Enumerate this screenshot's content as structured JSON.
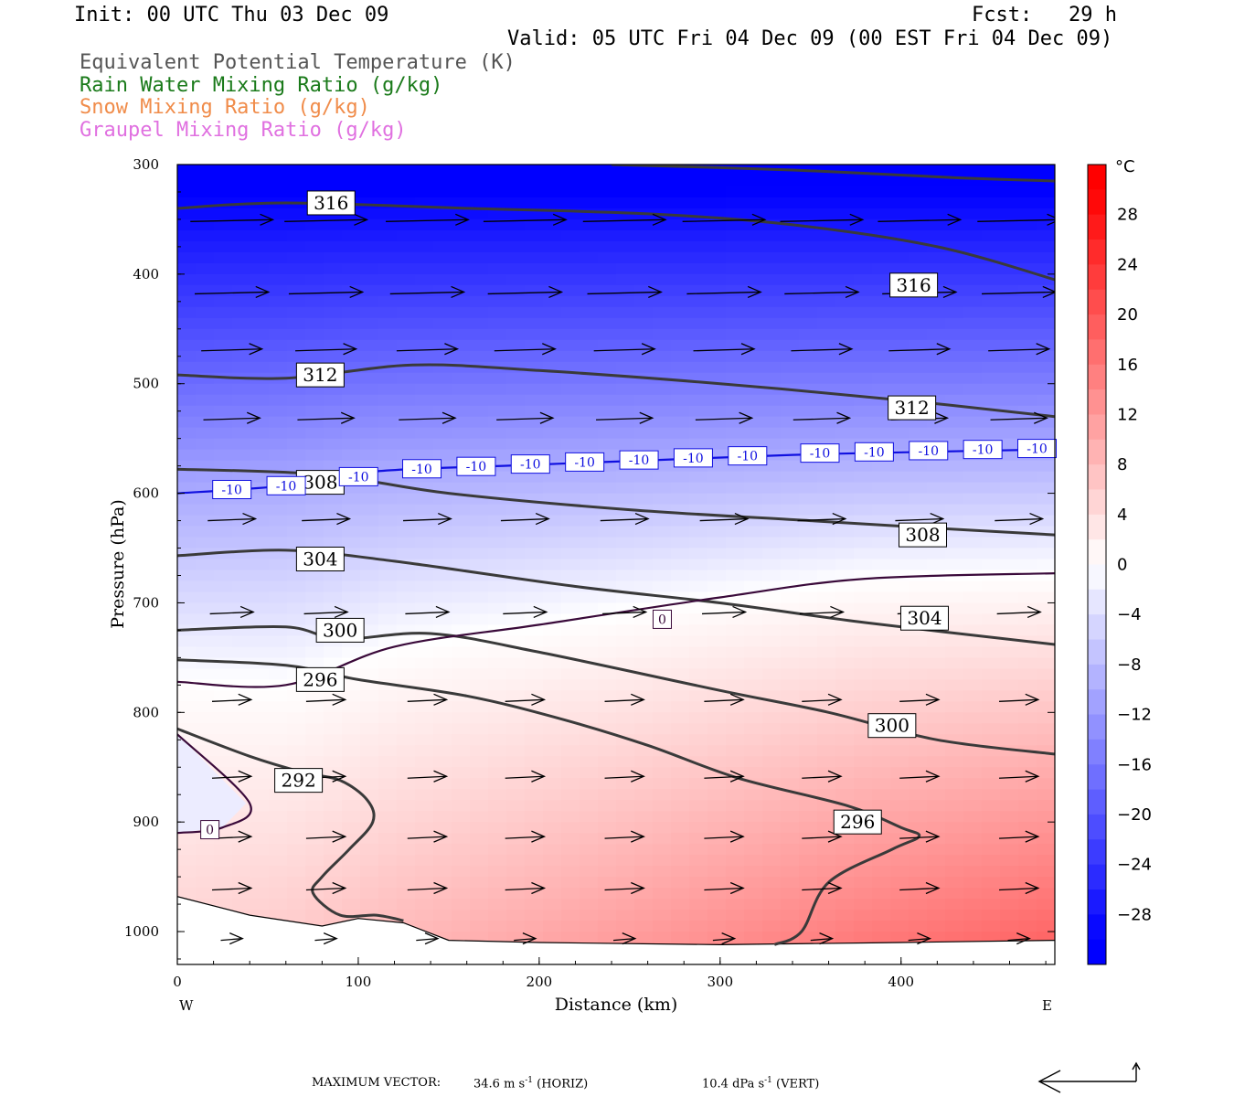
{
  "header": {
    "init": "Init: 00 UTC Thu 03 Dec 09",
    "fcst": "Fcst:   29 h",
    "valid": "Valid: 05 UTC Fri 04 Dec 09 (00 EST Fri 04 Dec 09)",
    "legend": [
      {
        "text": "Equivalent Potential Temperature (K)",
        "color": "#555555"
      },
      {
        "text": "Rain Water Mixing Ratio (g/kg)",
        "color": "#1a7a1a"
      },
      {
        "text": "Snow Mixing Ratio (g/kg)",
        "color": "#f08c4a"
      },
      {
        "text": "Graupel Mixing Ratio (g/kg)",
        "color": "#e070e0"
      }
    ]
  },
  "footer": {
    "max_vector_label": "MAXIMUM VECTOR:",
    "horiz": "34.6 m s",
    "horiz_exp": "-1",
    "horiz_unit": "(HORIZ)",
    "vert": "10.4 dPa s",
    "vert_exp": "-1",
    "vert_unit": "(VERT)"
  },
  "chart_data": {
    "type": "cross-section contour",
    "xlabel": "Distance (km)",
    "ylabel": "Pressure (hPa)",
    "xlim": [
      0,
      485
    ],
    "ylim": [
      1030,
      300
    ],
    "x_ticks": [
      0,
      100,
      200,
      300,
      400
    ],
    "y_ticks": [
      300,
      400,
      500,
      600,
      700,
      800,
      900,
      1000
    ],
    "x_end_labels": {
      "left": "W",
      "right": "E"
    },
    "colorbar": {
      "unit": "°C",
      "ticks": [
        28,
        24,
        20,
        16,
        12,
        8,
        4,
        0,
        -4,
        -8,
        -12,
        -16,
        -20,
        -24,
        -28
      ],
      "range": [
        -32,
        32
      ],
      "cold_color": "#0000ff",
      "warm_color": "#ff0000"
    },
    "theta_e_contours": [
      {
        "label": "316",
        "points": [
          [
            0,
            340
          ],
          [
            60,
            335
          ],
          [
            160,
            340
          ],
          [
            260,
            345
          ],
          [
            340,
            355
          ],
          [
            420,
            375
          ],
          [
            485,
            405
          ]
        ]
      },
      {
        "label": "316",
        "points": [
          [
            240,
            300
          ],
          [
            340,
            305
          ],
          [
            430,
            312
          ],
          [
            485,
            315
          ]
        ]
      },
      {
        "label": "312",
        "points": [
          [
            0,
            492
          ],
          [
            60,
            495
          ],
          [
            130,
            483
          ],
          [
            200,
            488
          ],
          [
            300,
            500
          ],
          [
            400,
            515
          ],
          [
            485,
            530
          ]
        ]
      },
      {
        "label": "308",
        "points": [
          [
            0,
            578
          ],
          [
            80,
            583
          ],
          [
            150,
            600
          ],
          [
            250,
            615
          ],
          [
            350,
            625
          ],
          [
            420,
            632
          ],
          [
            485,
            638
          ]
        ]
      },
      {
        "label": "304",
        "points": [
          [
            0,
            657
          ],
          [
            60,
            652
          ],
          [
            120,
            662
          ],
          [
            220,
            685
          ],
          [
            300,
            700
          ],
          [
            380,
            718
          ],
          [
            485,
            738
          ]
        ]
      },
      {
        "label": "300",
        "points": [
          [
            0,
            725
          ],
          [
            60,
            722
          ],
          [
            90,
            733
          ],
          [
            140,
            728
          ],
          [
            200,
            745
          ],
          [
            300,
            780
          ],
          [
            360,
            800
          ],
          [
            420,
            825
          ],
          [
            485,
            838
          ]
        ]
      },
      {
        "label": "296",
        "points": [
          [
            0,
            752
          ],
          [
            60,
            757
          ],
          [
            100,
            770
          ],
          [
            160,
            785
          ],
          [
            210,
            805
          ],
          [
            260,
            830
          ],
          [
            310,
            860
          ],
          [
            370,
            885
          ],
          [
            400,
            905
          ],
          [
            410,
            913
          ],
          [
            395,
            925
          ],
          [
            360,
            955
          ],
          [
            345,
            1000
          ],
          [
            330,
            1012
          ]
        ]
      },
      {
        "label": "292",
        "points": [
          [
            0,
            815
          ],
          [
            40,
            840
          ],
          [
            70,
            855
          ],
          [
            90,
            862
          ],
          [
            105,
            880
          ],
          [
            108,
            900
          ],
          [
            95,
            925
          ],
          [
            80,
            950
          ],
          [
            75,
            965
          ],
          [
            90,
            985
          ],
          [
            110,
            985
          ],
          [
            125,
            990
          ]
        ]
      }
    ],
    "isotherms": [
      {
        "label": "-10",
        "value": -10,
        "points": [
          [
            0,
            600
          ],
          [
            60,
            593
          ],
          [
            110,
            580
          ],
          [
            180,
            575
          ],
          [
            260,
            570
          ],
          [
            340,
            565
          ],
          [
            420,
            562
          ],
          [
            485,
            560
          ]
        ]
      },
      {
        "label": "0",
        "value": 0,
        "points": [
          [
            0,
            772
          ],
          [
            60,
            775
          ],
          [
            120,
            740
          ],
          [
            200,
            720
          ],
          [
            300,
            695
          ],
          [
            380,
            678
          ],
          [
            485,
            673
          ]
        ]
      },
      {
        "label": "0",
        "value": 0,
        "points": [
          [
            0,
            820
          ],
          [
            40,
            883
          ],
          [
            25,
            905
          ],
          [
            0,
            910
          ]
        ]
      }
    ],
    "isotherm_label_positions": {
      "minus10": [
        15,
        45,
        85,
        120,
        150,
        180,
        210,
        240,
        270,
        300,
        340,
        370,
        400,
        430,
        460
      ],
      "zero": [
        [
          268,
          715
        ],
        [
          18,
          907
        ]
      ]
    },
    "wind_vector_rows": [
      {
        "p": 352,
        "speed": 0.95
      },
      {
        "p": 418,
        "speed": 0.85
      },
      {
        "p": 470,
        "speed": 0.7
      },
      {
        "p": 533,
        "speed": 0.65
      },
      {
        "p": 625,
        "speed": 0.55
      },
      {
        "p": 710,
        "speed": 0.5
      },
      {
        "p": 790,
        "speed": 0.45
      },
      {
        "p": 860,
        "speed": 0.45
      },
      {
        "p": 915,
        "speed": 0.45
      },
      {
        "p": 962,
        "speed": 0.45
      },
      {
        "p": 1008,
        "speed": 0.25
      }
    ]
  }
}
